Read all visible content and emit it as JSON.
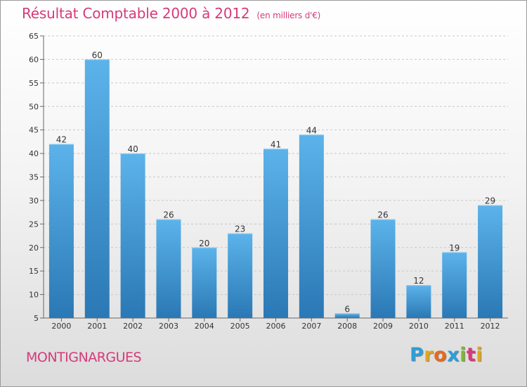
{
  "title": "Résultat Comptable 2000 à 2012",
  "subtitle": "(en milliers d'€)",
  "location": "MONTIGNARGUES",
  "brand": {
    "letters": [
      "P",
      "r",
      "o",
      "x",
      "i",
      "t",
      "i"
    ],
    "colors": [
      "#2a9fd8",
      "#e2a51b",
      "#e46a20",
      "#2a9fd8",
      "#7cb82f",
      "#d63a7a",
      "#e2a51b"
    ]
  },
  "colors": {
    "title": "#d63a7a",
    "bar_light": "#5cb3ea",
    "bar_dark": "#2a78b5",
    "grid": "#c8c8c8"
  },
  "chart_data": {
    "type": "bar",
    "title": "Résultat Comptable 2000 à 2012",
    "subtitle": "(en milliers d'€)",
    "xlabel": "",
    "ylabel": "",
    "categories": [
      "2000",
      "2001",
      "2002",
      "2003",
      "2004",
      "2005",
      "2006",
      "2007",
      "2008",
      "2009",
      "2010",
      "2011",
      "2012"
    ],
    "values": [
      42,
      60,
      40,
      26,
      20,
      23,
      41,
      44,
      6,
      26,
      12,
      19,
      29
    ],
    "ylim": [
      5,
      65
    ],
    "yticks": [
      5,
      10,
      15,
      20,
      25,
      30,
      35,
      40,
      45,
      50,
      55,
      60,
      65
    ],
    "grid": true,
    "grid_style": "dashed"
  }
}
